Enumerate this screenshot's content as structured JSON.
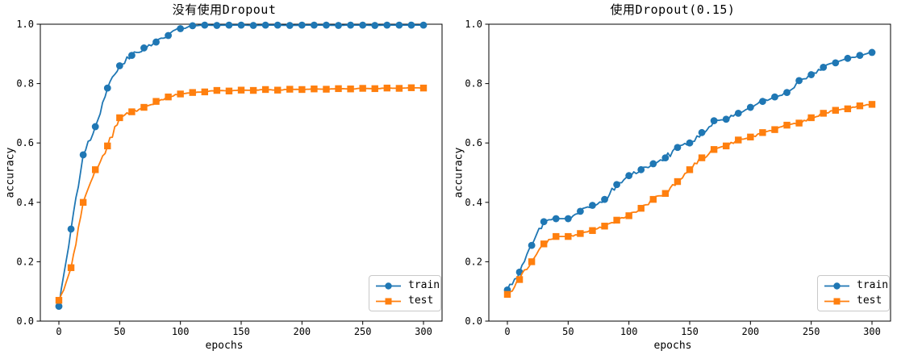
{
  "figure_background": "#ffffff",
  "axis_color": "#000000",
  "legend_border_color": "#c9c9c9",
  "chart_data": [
    {
      "type": "line",
      "title": "没有使用Dropout",
      "xlabel": "epochs",
      "ylabel": "accuracy",
      "xlim": [
        -15,
        315
      ],
      "ylim": [
        0,
        1.0
      ],
      "grid": false,
      "legend_loc": "lower right",
      "xticks": {
        "values": [
          0,
          50,
          100,
          150,
          200,
          250,
          300
        ],
        "labels": [
          "0",
          "50",
          "100",
          "150",
          "200",
          "250",
          "300"
        ]
      },
      "yticks": {
        "values": [
          0,
          0.2,
          0.4,
          0.6,
          0.8,
          1.0
        ],
        "labels": [
          "0.0",
          "0.2",
          "0.4",
          "0.6",
          "0.8",
          "1.0"
        ]
      },
      "x": [
        0,
        10,
        20,
        30,
        40,
        50,
        60,
        70,
        80,
        90,
        100,
        110,
        120,
        130,
        140,
        150,
        160,
        170,
        180,
        190,
        200,
        210,
        220,
        230,
        240,
        250,
        260,
        270,
        280,
        290,
        300
      ],
      "series": [
        {
          "name": "train",
          "color": "#1f77b4",
          "marker": "circle",
          "values": [
            0.05,
            0.31,
            0.56,
            0.655,
            0.785,
            0.86,
            0.895,
            0.92,
            0.94,
            0.962,
            0.985,
            0.995,
            0.997,
            0.996,
            0.997,
            0.997,
            0.996,
            0.997,
            0.997,
            0.996,
            0.997,
            0.997,
            0.997,
            0.996,
            0.997,
            0.997,
            0.996,
            0.997,
            0.997,
            0.997,
            0.997
          ]
        },
        {
          "name": "test",
          "color": "#ff7f0e",
          "marker": "square",
          "values": [
            0.07,
            0.18,
            0.4,
            0.51,
            0.59,
            0.685,
            0.705,
            0.72,
            0.74,
            0.755,
            0.765,
            0.77,
            0.772,
            0.777,
            0.775,
            0.778,
            0.777,
            0.78,
            0.778,
            0.781,
            0.78,
            0.782,
            0.781,
            0.783,
            0.782,
            0.784,
            0.783,
            0.785,
            0.784,
            0.786,
            0.785
          ]
        }
      ]
    },
    {
      "type": "line",
      "title": "使用Dropout(0.15)",
      "xlabel": "epochs",
      "ylabel": "accuracy",
      "xlim": [
        -15,
        315
      ],
      "ylim": [
        0,
        1.0
      ],
      "grid": false,
      "legend_loc": "lower right",
      "xticks": {
        "values": [
          0,
          50,
          100,
          150,
          200,
          250,
          300
        ],
        "labels": [
          "0",
          "50",
          "100",
          "150",
          "200",
          "250",
          "300"
        ]
      },
      "yticks": {
        "values": [
          0,
          0.2,
          0.4,
          0.6,
          0.8,
          1.0
        ],
        "labels": [
          "0.0",
          "0.2",
          "0.4",
          "0.6",
          "0.8",
          "1.0"
        ]
      },
      "x": [
        0,
        10,
        20,
        30,
        40,
        50,
        60,
        70,
        80,
        90,
        100,
        110,
        120,
        130,
        140,
        150,
        160,
        170,
        180,
        190,
        200,
        210,
        220,
        230,
        240,
        250,
        260,
        270,
        280,
        290,
        300
      ],
      "series": [
        {
          "name": "train",
          "color": "#1f77b4",
          "marker": "circle",
          "values": [
            0.105,
            0.165,
            0.255,
            0.335,
            0.345,
            0.345,
            0.37,
            0.39,
            0.41,
            0.46,
            0.49,
            0.51,
            0.53,
            0.55,
            0.585,
            0.6,
            0.635,
            0.675,
            0.68,
            0.7,
            0.72,
            0.74,
            0.755,
            0.77,
            0.81,
            0.83,
            0.855,
            0.87,
            0.885,
            0.895,
            0.905
          ]
        },
        {
          "name": "test",
          "color": "#ff7f0e",
          "marker": "square",
          "values": [
            0.09,
            0.14,
            0.2,
            0.26,
            0.285,
            0.285,
            0.295,
            0.305,
            0.32,
            0.34,
            0.355,
            0.38,
            0.41,
            0.43,
            0.47,
            0.51,
            0.55,
            0.578,
            0.59,
            0.61,
            0.62,
            0.635,
            0.645,
            0.66,
            0.667,
            0.685,
            0.7,
            0.71,
            0.715,
            0.725,
            0.73
          ]
        }
      ]
    }
  ]
}
